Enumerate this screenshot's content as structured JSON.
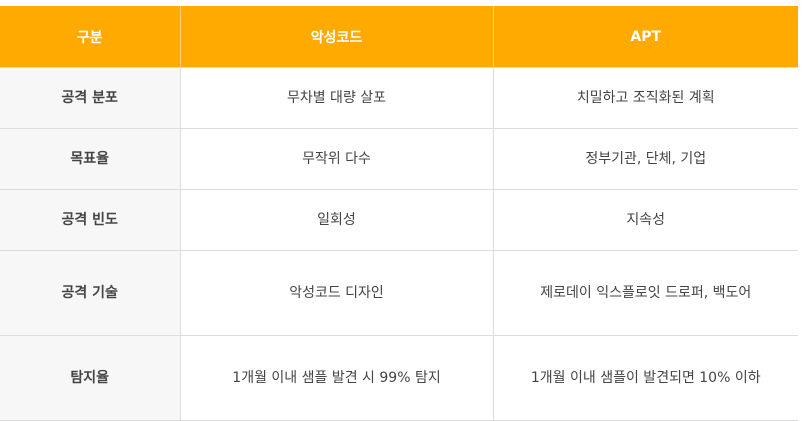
{
  "header": {
    "col1": "구분",
    "col2": "악성코드",
    "col3": "APT"
  },
  "rows": [
    {
      "label": "공격 분포",
      "malware": "무차별 대량 살포",
      "apt": "치밀하고 조직화된 계획"
    },
    {
      "label": "목표율",
      "malware": "무작위 다수",
      "apt": "정부기관, 단체, 기업"
    },
    {
      "label": "공격 빈도",
      "malware": "일회성",
      "apt": "지속성"
    },
    {
      "label": "공격 기술",
      "malware": "악성코드 디자인",
      "apt": "제로데이 익스플로잇 드로퍼, 백도어"
    },
    {
      "label": "탐지율",
      "malware": "1개월 이내 샘플 발견 시 99% 탐지",
      "apt": "1개월 이내 샘플이 발견되면 10% 이하"
    }
  ],
  "colors": {
    "header_bg": "#FEAA00",
    "header_text": "#ffffff",
    "label_bg": "#f7f7f7"
  }
}
